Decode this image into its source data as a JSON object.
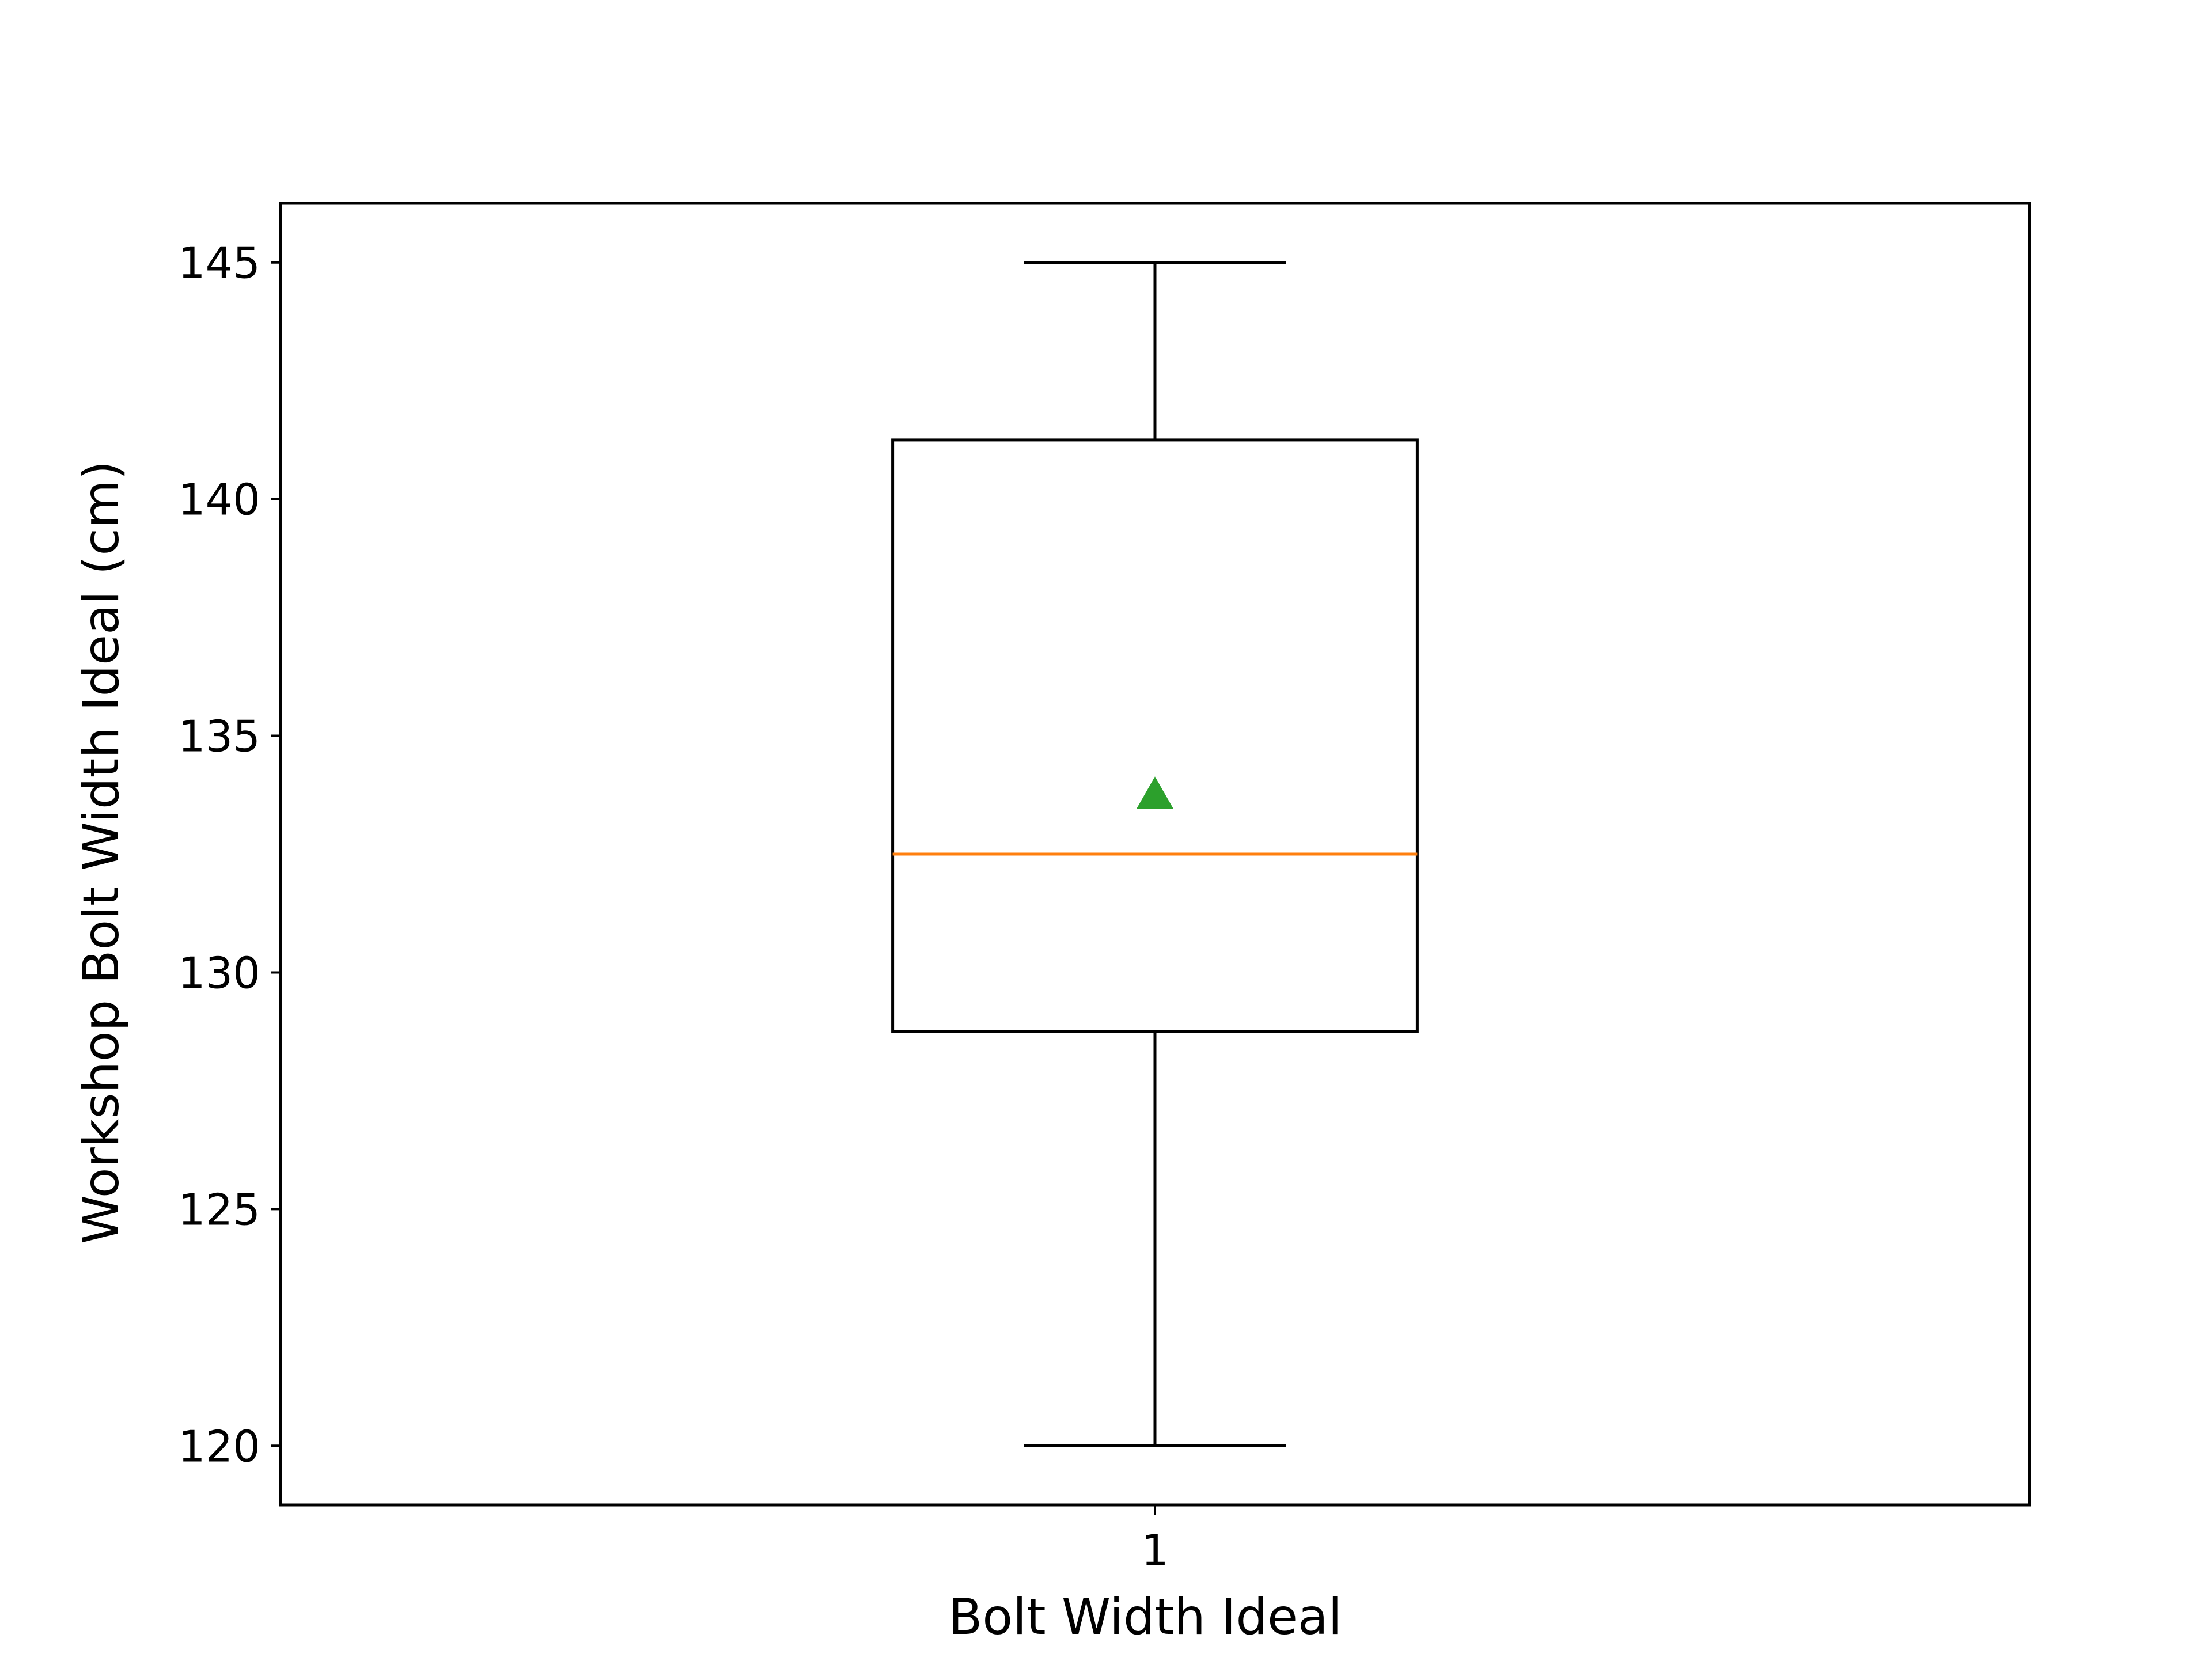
{
  "chart_data": {
    "type": "box",
    "categories": [
      "1"
    ],
    "series": [
      {
        "whisker_low": 120,
        "q1": 128.75,
        "median": 132.5,
        "q3": 141.25,
        "whisker_high": 145,
        "mean": 133.75
      }
    ],
    "xlabel": "Bolt Width Ideal",
    "ylabel": "Workshop Bolt Width Ideal (cm)",
    "ylim": [
      118.75,
      146.25
    ],
    "yticks": [
      120,
      125,
      130,
      135,
      140,
      145
    ],
    "grid": false,
    "legend": "none",
    "colors": {
      "box": "#000000",
      "median": "#ff7f0e",
      "mean": "#2ca02c"
    }
  }
}
